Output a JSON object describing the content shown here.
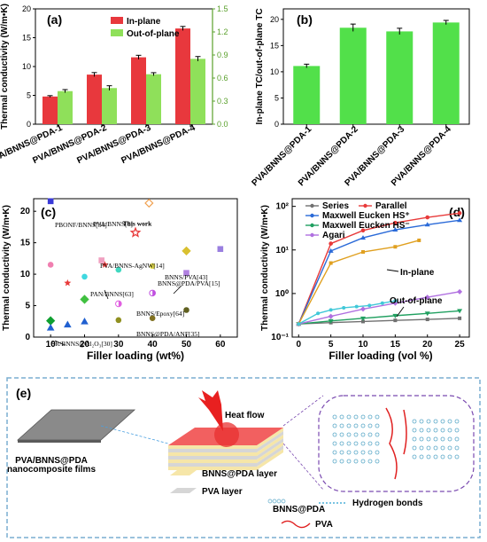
{
  "colors": {
    "red": "#e8383d",
    "green": "#8fe05a",
    "bright_green": "#52e04a",
    "axis": "#000000",
    "green_axis": "#5aa02c"
  },
  "chart_data": [
    {
      "panel": "(a)",
      "type": "bar",
      "categories": [
        "PVA/BNNS@PDA-1",
        "PVA/BNNS@PDA-2",
        "PVA/BNNS@PDA-3",
        "PVA/BNNS@PDA-4"
      ],
      "ylabel": "Thermal conductivity (W/m•K)",
      "ylim": [
        0,
        20
      ],
      "yticks": [
        "0",
        "5",
        "10",
        "15",
        "20"
      ],
      "y2lim": [
        0,
        1.5
      ],
      "y2ticks": [
        "0.0",
        "0.3",
        "0.6",
        "0.9",
        "1.2",
        "1.5"
      ],
      "legend_position": "top-right",
      "series": [
        {
          "name": "In-plane",
          "axis": "left",
          "values": [
            4.8,
            8.6,
            11.6,
            16.6
          ],
          "errors": [
            0.15,
            0.35,
            0.35,
            0.35
          ]
        },
        {
          "name": "Out-of-plane",
          "axis": "right",
          "values": [
            0.43,
            0.47,
            0.65,
            0.85
          ],
          "errors": [
            0.02,
            0.03,
            0.02,
            0.03
          ]
        }
      ]
    },
    {
      "panel": "(b)",
      "type": "bar",
      "categories": [
        "PVA/BNNS@PDA-1",
        "PVA/BNNS@PDA-2",
        "PVA/BNNS@PDA-3",
        "PVA/BNNS@PDA-4"
      ],
      "ylabel": "In-plane TC/out-of-plane TC",
      "ylim": [
        0,
        22
      ],
      "yticks": [
        "0",
        "5",
        "10",
        "15",
        "20"
      ],
      "series": [
        {
          "values": [
            11.1,
            18.4,
            17.7,
            19.4
          ],
          "errors": [
            0.35,
            0.7,
            0.6,
            0.4
          ]
        }
      ]
    },
    {
      "panel": "(c)",
      "type": "scatter",
      "xlabel": "Filler loading (wt%)",
      "ylabel": "Thermal conductivity (W/m•K)",
      "xlim": [
        5,
        65
      ],
      "ylim": [
        0,
        22
      ],
      "xticks": [
        "10",
        "20",
        "30",
        "40",
        "50",
        "60"
      ],
      "yticks": [
        "0",
        "5",
        "10",
        "15",
        "20"
      ],
      "highlight": {
        "x": 35,
        "y": 16.6,
        "label": "This work"
      },
      "annotations": [
        "PBONF/BNNS[34]",
        "PVA/BNNS[6]",
        "BNNS/PVA[43]",
        "PVA/BNNS-AgNW[14]",
        "BNNS@PDA/PVA[15]",
        "PAN/BNNS[63]",
        "BNNS/Epoxy[64]",
        "BNNS@PDA/ANF[35]",
        "SR/BNNS@Al₂O₃[30]"
      ],
      "points": [
        {
          "x": 10,
          "y": 21.6,
          "color": "#3a3ad8",
          "m": "s"
        },
        {
          "x": 39,
          "y": 21.3,
          "color": "#f0a050",
          "m": "dh"
        },
        {
          "x": 50,
          "y": 13.7,
          "color": "#d9c030",
          "m": "d"
        },
        {
          "x": 60,
          "y": 14.0,
          "color": "#9a7fe0",
          "m": "s"
        },
        {
          "x": 10,
          "y": 11.5,
          "color": "#f07fb0",
          "m": "o"
        },
        {
          "x": 20,
          "y": 9.6,
          "color": "#40d8e0",
          "m": "o"
        },
        {
          "x": 30,
          "y": 10.7,
          "color": "#40d8c0",
          "m": "o"
        },
        {
          "x": 25,
          "y": 12.2,
          "color": "#f0a0c0",
          "m": "s"
        },
        {
          "x": 40,
          "y": 11.3,
          "color": "#e8e050",
          "m": "o"
        },
        {
          "x": 15,
          "y": 8.6,
          "color": "#e83a3a",
          "m": "st"
        },
        {
          "x": 26,
          "y": 11.5,
          "color": "#e83a3a",
          "m": "st"
        },
        {
          "x": 20,
          "y": 6.0,
          "color": "#40c040",
          "m": "d"
        },
        {
          "x": 40,
          "y": 7.0,
          "color": "#c050e0",
          "m": "hf"
        },
        {
          "x": 50,
          "y": 10.2,
          "color": "#b080e0",
          "m": "s"
        },
        {
          "x": 30,
          "y": 5.3,
          "color": "#e060e0",
          "m": "hf"
        },
        {
          "x": 30,
          "y": 2.7,
          "color": "#909020",
          "m": "o"
        },
        {
          "x": 40,
          "y": 3.0,
          "color": "#807020",
          "m": "o"
        },
        {
          "x": 50,
          "y": 4.3,
          "color": "#606020",
          "m": "o"
        },
        {
          "x": 10,
          "y": 2.6,
          "color": "#10a030",
          "m": "d"
        },
        {
          "x": 10,
          "y": 1.5,
          "color": "#2060d0",
          "m": "tri"
        },
        {
          "x": 15,
          "y": 2.0,
          "color": "#2060d0",
          "m": "tri"
        },
        {
          "x": 20,
          "y": 2.5,
          "color": "#2060d0",
          "m": "tri"
        }
      ]
    },
    {
      "panel": "(d)",
      "type": "line",
      "xlabel": "Filler loading (vol %)",
      "ylabel": "Thermal conductivity (W/m•K)",
      "yscale": "log",
      "xlim": [
        -1,
        26.5
      ],
      "ylim": [
        0.1,
        150
      ],
      "xticks": [
        "0",
        "5",
        "10",
        "15",
        "20",
        "25"
      ],
      "yticks": [
        "10⁻¹",
        "10⁰",
        "10¹",
        "10²"
      ],
      "legend_position": "top-left",
      "annotations": [
        "In-plane",
        "Out-of-plane"
      ],
      "series": [
        {
          "name": "Series",
          "color": "#707070",
          "x": [
            0,
            5,
            10,
            15,
            20,
            25
          ],
          "y": [
            0.2,
            0.215,
            0.228,
            0.242,
            0.255,
            0.27
          ]
        },
        {
          "name": "Parallel",
          "color": "#e83a3a",
          "x": [
            0,
            5,
            10,
            15,
            20,
            25
          ],
          "y": [
            0.2,
            14,
            28,
            42,
            56,
            70
          ]
        },
        {
          "name": "Maxwell Eucken HS⁺",
          "color": "#2a6ad8",
          "x": [
            0,
            5,
            10,
            15,
            20,
            25
          ],
          "y": [
            0.2,
            9.5,
            19,
            29,
            38,
            48
          ]
        },
        {
          "name": "Maxwell Eucken HS⁻",
          "color": "#20a060",
          "x": [
            0,
            5,
            10,
            15,
            20,
            25
          ],
          "y": [
            0.2,
            0.235,
            0.27,
            0.31,
            0.35,
            0.4
          ]
        },
        {
          "name": "Agari",
          "color": "#b070e0",
          "x": [
            0,
            5,
            10,
            15,
            20,
            25
          ],
          "y": [
            0.2,
            0.3,
            0.44,
            0.6,
            0.82,
            1.1
          ]
        },
        {
          "name": "",
          "color": "#e0a020",
          "x": [
            0,
            5,
            10,
            15,
            18.7
          ],
          "y": [
            0.2,
            5,
            9,
            11.8,
            16.6
          ]
        },
        {
          "name": "",
          "color": "#40c8d8",
          "x": [
            0,
            3,
            5,
            7,
            9,
            11,
            13,
            15
          ],
          "y": [
            0.2,
            0.35,
            0.42,
            0.47,
            0.5,
            0.53,
            0.6,
            0.68
          ]
        }
      ]
    }
  ],
  "panel_e": {
    "label": "(e)",
    "heat_flow": "Heat flow",
    "film_label": "PVA/BNNS@PDA\nnanocomposite films",
    "film_line1": "PVA/BNNS@PDA",
    "film_line2": "nanocomposite films",
    "legend": {
      "bnns_layer": "BNNS@PDA layer",
      "pva_layer": "PVA layer",
      "bnns": "BNNS@PDA",
      "hbond": "Hydrogen bonds",
      "pva": "PVA"
    }
  }
}
